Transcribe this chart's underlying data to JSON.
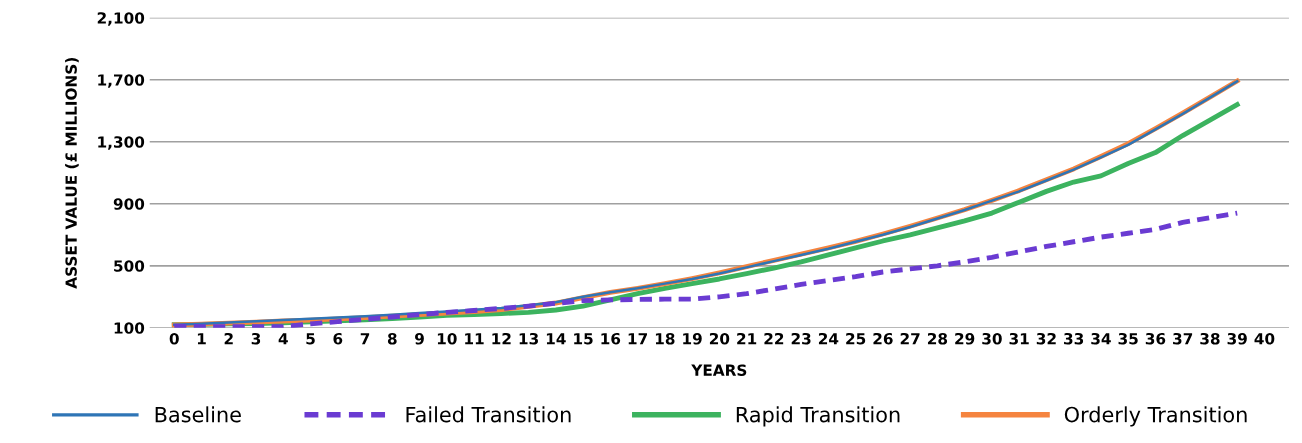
{
  "chart_data": {
    "type": "line",
    "xlabel": "YEARS",
    "ylabel": "ASSET VALUE (£ MILLIONS)",
    "categories": [
      "0",
      "1",
      "2",
      "3",
      "4",
      "5",
      "6",
      "7",
      "8",
      "9",
      "10",
      "11",
      "12",
      "13",
      "14",
      "15",
      "16",
      "17",
      "18",
      "19",
      "20",
      "21",
      "22",
      "23",
      "24",
      "25",
      "26",
      "27",
      "28",
      "29",
      "30",
      "31",
      "32",
      "33",
      "34",
      "35",
      "36",
      "37",
      "38",
      "39",
      "40"
    ],
    "ylim": [
      100,
      2100
    ],
    "yticks": [
      {
        "value": 100,
        "label": "100"
      },
      {
        "value": 500,
        "label": "500"
      },
      {
        "value": 900,
        "label": "900"
      },
      {
        "value": 1300,
        "label": "1,300"
      },
      {
        "value": 1700,
        "label": "1,700"
      },
      {
        "value": 2100,
        "label": "2,100"
      }
    ],
    "grid": "y",
    "legend": "bottom",
    "series": [
      {
        "name": "Baseline",
        "color": "#2e75b6",
        "line_style": "solid",
        "values": [
          120,
          127,
          135,
          142,
          150,
          158,
          166,
          175,
          185,
          195,
          205,
          216,
          228,
          245,
          265,
          300,
          330,
          355,
          385,
          415,
          450,
          490,
          530,
          570,
          610,
          655,
          700,
          750,
          805,
          860,
          920,
          980,
          1050,
          1120,
          1200,
          1280,
          1380,
          1480,
          1585,
          1690,
          null
        ]
      },
      {
        "name": "Failed Transition",
        "color": "#6a3bd2",
        "line_style": "dashed",
        "values": [
          110,
          108,
          108,
          108,
          108,
          125,
          140,
          155,
          170,
          185,
          200,
          212,
          225,
          240,
          258,
          275,
          280,
          283,
          285,
          285,
          300,
          320,
          350,
          380,
          405,
          430,
          460,
          480,
          500,
          525,
          555,
          590,
          625,
          655,
          685,
          710,
          735,
          780,
          810,
          840,
          null
        ]
      },
      {
        "name": "Rapid Transition",
        "color": "#3cb35f",
        "line_style": "solid",
        "values": [
          120,
          122,
          125,
          128,
          132,
          138,
          145,
          152,
          160,
          170,
          180,
          186,
          192,
          200,
          215,
          240,
          280,
          320,
          355,
          385,
          415,
          450,
          485,
          525,
          570,
          615,
          660,
          700,
          745,
          790,
          840,
          910,
          980,
          1040,
          1080,
          1160,
          1230,
          1340,
          1440,
          1540,
          null
        ]
      },
      {
        "name": "Orderly Transition",
        "color": "#f5843f",
        "line_style": "solid",
        "values": [
          118,
          124,
          130,
          137,
          144,
          150,
          158,
          166,
          175,
          185,
          195,
          205,
          218,
          238,
          260,
          295,
          328,
          355,
          385,
          418,
          455,
          495,
          535,
          575,
          615,
          658,
          705,
          755,
          808,
          862,
          922,
          985,
          1055,
          1125,
          1205,
          1288,
          1385,
          1485,
          1588,
          1692,
          null
        ]
      }
    ]
  }
}
